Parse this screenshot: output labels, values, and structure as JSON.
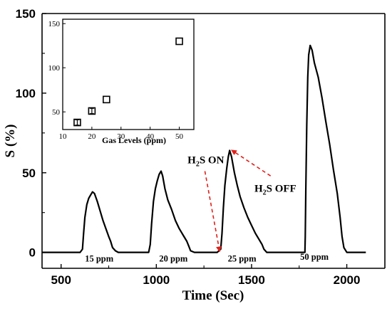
{
  "chart_data": [
    {
      "type": "line",
      "xlabel": "Time (Sec)",
      "ylabel": "S (%)",
      "xlim": [
        400,
        2200
      ],
      "ylim": [
        -10,
        150
      ],
      "x_ticks": [
        500,
        1000,
        1500,
        2000
      ],
      "y_ticks": [
        0,
        50,
        100,
        150
      ],
      "grid": false,
      "series": [
        {
          "values_xy": [
            [
              400,
              0
            ],
            [
              600,
              0
            ],
            [
              612,
              2
            ],
            [
              618,
              12
            ],
            [
              625,
              22
            ],
            [
              635,
              30
            ],
            [
              645,
              34
            ],
            [
              655,
              36
            ],
            [
              665,
              38
            ],
            [
              675,
              37
            ],
            [
              690,
              32
            ],
            [
              705,
              26
            ],
            [
              720,
              20
            ],
            [
              735,
              15
            ],
            [
              750,
              10
            ],
            [
              760,
              7
            ],
            [
              770,
              3
            ],
            [
              785,
              1
            ],
            [
              800,
              0
            ],
            [
              900,
              0
            ],
            [
              960,
              0
            ],
            [
              968,
              5
            ],
            [
              975,
              18
            ],
            [
              985,
              32
            ],
            [
              995,
              40
            ],
            [
              1005,
              45
            ],
            [
              1015,
              49
            ],
            [
              1025,
              51
            ],
            [
              1033,
              48
            ],
            [
              1045,
              40
            ],
            [
              1060,
              33
            ],
            [
              1080,
              27
            ],
            [
              1100,
              20
            ],
            [
              1120,
              15
            ],
            [
              1140,
              11
            ],
            [
              1160,
              7
            ],
            [
              1170,
              4
            ],
            [
              1180,
              1
            ],
            [
              1200,
              0
            ],
            [
              1320,
              0
            ],
            [
              1338,
              2
            ],
            [
              1345,
              12
            ],
            [
              1352,
              28
            ],
            [
              1360,
              42
            ],
            [
              1370,
              53
            ],
            [
              1378,
              60
            ],
            [
              1385,
              64
            ],
            [
              1395,
              60
            ],
            [
              1410,
              50
            ],
            [
              1425,
              42
            ],
            [
              1440,
              35
            ],
            [
              1460,
              28
            ],
            [
              1480,
              22
            ],
            [
              1500,
              17
            ],
            [
              1520,
              12
            ],
            [
              1540,
              8
            ],
            [
              1555,
              5
            ],
            [
              1565,
              2
            ],
            [
              1580,
              0
            ],
            [
              1780,
              0
            ],
            [
              1782,
              10
            ],
            [
              1785,
              40
            ],
            [
              1790,
              80
            ],
            [
              1795,
              110
            ],
            [
              1800,
              124
            ],
            [
              1808,
              130
            ],
            [
              1818,
              127
            ],
            [
              1830,
              119
            ],
            [
              1850,
              110
            ],
            [
              1870,
              97
            ],
            [
              1890,
              82
            ],
            [
              1910,
              68
            ],
            [
              1930,
              52
            ],
            [
              1950,
              37
            ],
            [
              1965,
              22
            ],
            [
              1975,
              10
            ],
            [
              1985,
              3
            ],
            [
              2000,
              0
            ],
            [
              2100,
              0
            ]
          ]
        }
      ],
      "annotations": {
        "peak_labels": [
          {
            "text": "15 ppm",
            "x": 700,
            "y": -3
          },
          {
            "text": "20 ppm",
            "x": 1090,
            "y": -3
          },
          {
            "text": "25 ppm",
            "x": 1450,
            "y": -3
          },
          {
            "text": "50 ppm",
            "x": 1830,
            "y": -2
          }
        ],
        "on_label": {
          "base": "H",
          "sub": "2",
          "rest": "S ON",
          "x": 1260,
          "y": 56
        },
        "off_label": {
          "base": "H",
          "sub": "2",
          "rest": "S OFF",
          "x": 1625,
          "y": 38
        }
      }
    },
    {
      "type": "scatter",
      "xlabel": "Gas Levels (ppm)",
      "ylabel": "",
      "xlim": [
        10,
        55
      ],
      "ylim": [
        30,
        155
      ],
      "x_ticks": [
        10,
        20,
        30,
        40,
        50
      ],
      "y_ticks": [
        50,
        100,
        150
      ],
      "x": [
        15,
        20,
        25,
        50
      ],
      "y": [
        38,
        51,
        64,
        130
      ],
      "error": [
        3,
        3,
        0,
        0
      ]
    }
  ]
}
